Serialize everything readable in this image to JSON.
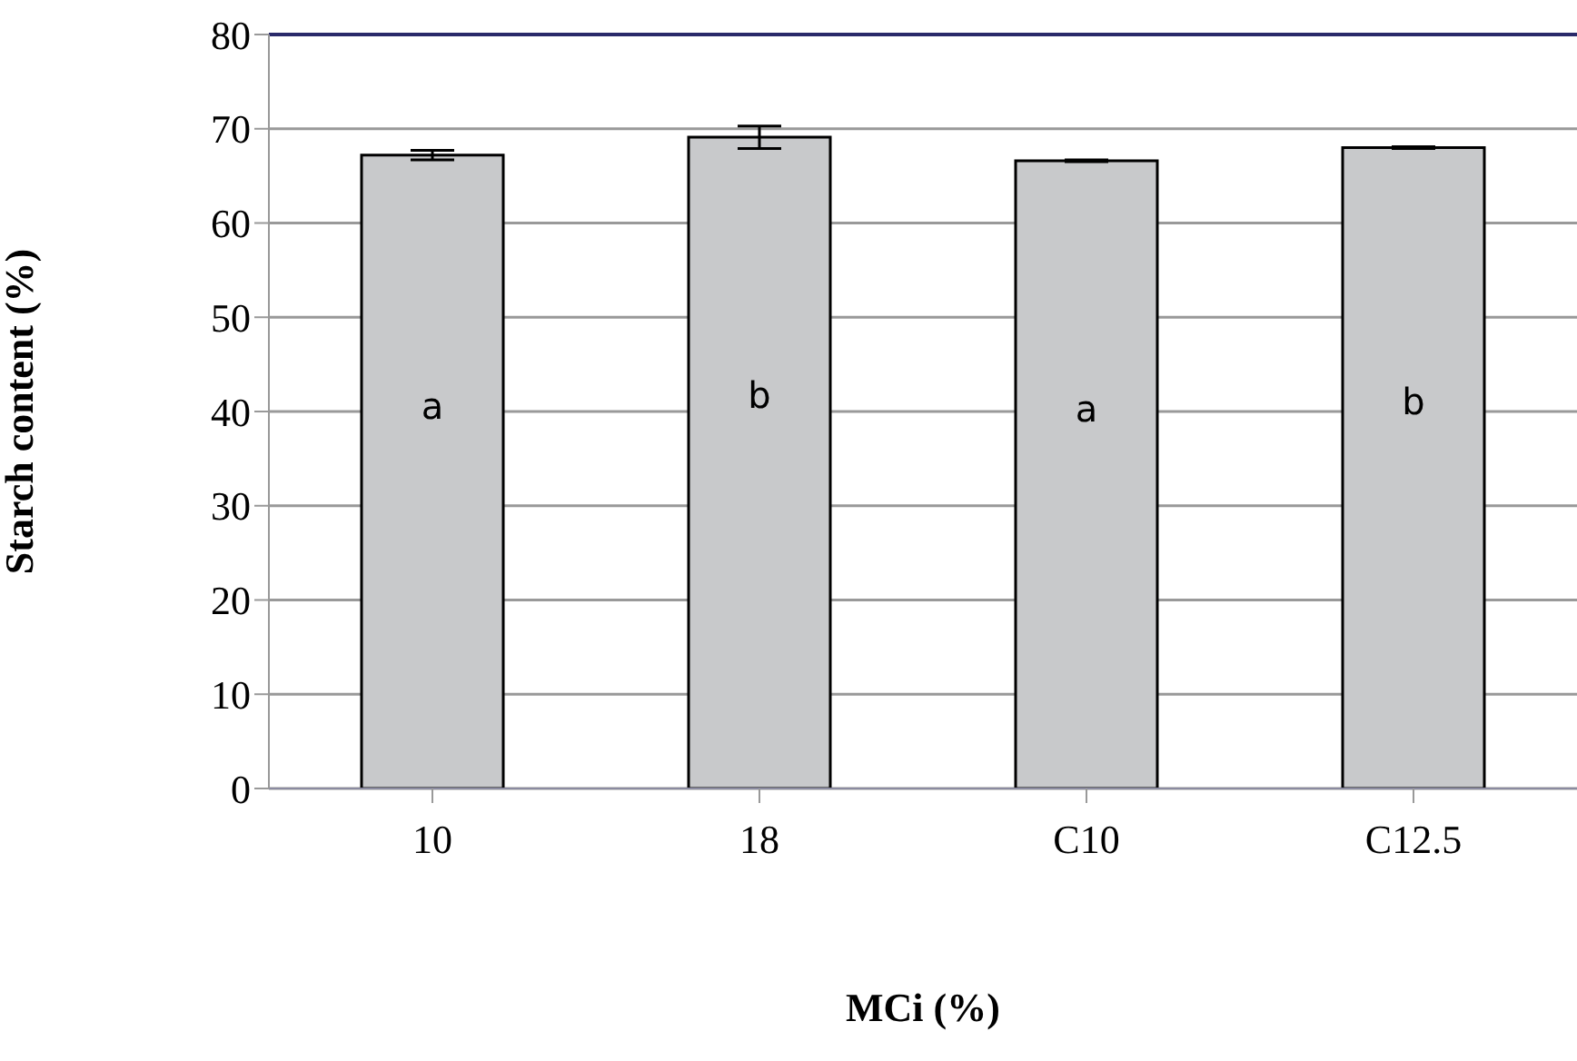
{
  "chart_data": {
    "type": "bar",
    "xlabel": "MCi (%)",
    "ylabel": "Starch content  (%)",
    "categories": [
      "10",
      "18",
      "C10",
      "C12.5"
    ],
    "values": [
      67.2,
      69.1,
      66.6,
      68.0
    ],
    "errors": [
      0.5,
      1.2,
      0.1,
      0.1
    ],
    "color": "#c8c9cb",
    "ylim": [
      0,
      80
    ],
    "yticks": [
      0,
      10,
      20,
      30,
      40,
      50,
      60,
      70,
      80
    ],
    "grid": "y",
    "annotations": [
      "a",
      "b",
      "a",
      "b"
    ]
  }
}
